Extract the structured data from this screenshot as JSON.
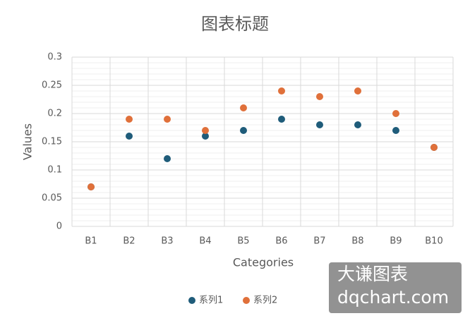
{
  "chart_data": {
    "type": "scatter",
    "title": "图表标题",
    "x_label": "Categories",
    "y_label": "Values",
    "categories": [
      "B1",
      "B2",
      "B3",
      "B4",
      "B5",
      "B6",
      "B7",
      "B8",
      "B9",
      "B10"
    ],
    "series": [
      {
        "name": "系列1",
        "color": "#1f5c7a",
        "values": [
          0.07,
          0.16,
          0.12,
          0.16,
          0.17,
          0.19,
          0.18,
          0.18,
          0.17,
          0.14
        ]
      },
      {
        "name": "系列2",
        "color": "#e0703a",
        "values": [
          0.07,
          0.19,
          0.19,
          0.17,
          0.21,
          0.24,
          0.23,
          0.24,
          0.2,
          0.14
        ]
      }
    ],
    "ylim": [
      0,
      0.3
    ],
    "yticks": [
      0,
      0.05,
      0.1,
      0.15,
      0.2,
      0.25,
      0.3
    ],
    "grid": true,
    "minor_grid": true,
    "legend": "bottom",
    "watermark": [
      "大谦图表",
      "dqchart.com"
    ]
  }
}
